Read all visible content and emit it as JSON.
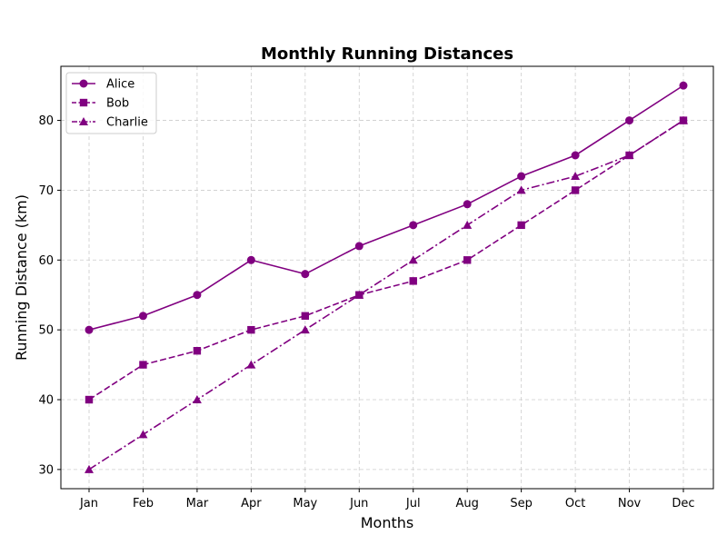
{
  "chart_data": {
    "type": "line",
    "title": "Monthly Running Distances",
    "xlabel": "Months",
    "ylabel": "Running Distance (km)",
    "categories": [
      "Jan",
      "Feb",
      "Mar",
      "Apr",
      "May",
      "Jun",
      "Jul",
      "Aug",
      "Sep",
      "Oct",
      "Nov",
      "Dec"
    ],
    "ylim": [
      27.25,
      87.75
    ],
    "yticks": [
      30,
      40,
      50,
      60,
      70,
      80
    ],
    "grid": true,
    "legend_position": "top-left",
    "series": [
      {
        "name": "Alice",
        "color": "#800080",
        "marker": "circle",
        "linestyle": "solid",
        "values": [
          50,
          52,
          55,
          60,
          58,
          62,
          65,
          68,
          72,
          75,
          80,
          85
        ]
      },
      {
        "name": "Bob",
        "color": "#800080",
        "marker": "square",
        "linestyle": "dashed",
        "values": [
          40,
          45,
          47,
          50,
          52,
          55,
          57,
          60,
          65,
          70,
          75,
          80
        ]
      },
      {
        "name": "Charlie",
        "color": "#800080",
        "marker": "triangle",
        "linestyle": "dashdot",
        "values": [
          30,
          35,
          40,
          45,
          50,
          55,
          60,
          65,
          70,
          72,
          75,
          80
        ]
      }
    ]
  }
}
